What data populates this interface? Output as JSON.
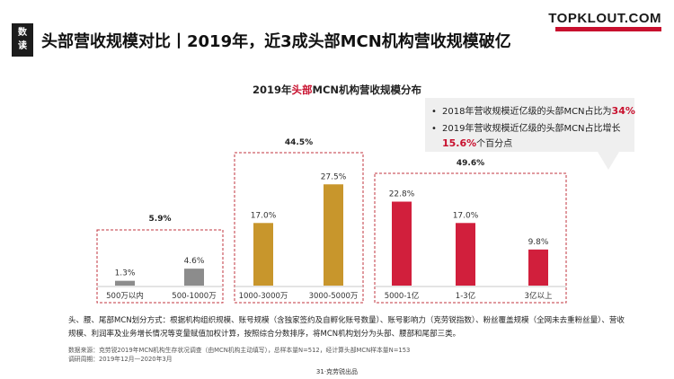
{
  "header": {
    "tag_chars": [
      "数",
      "读"
    ],
    "title": "头部营收规模对比丨2019年，近3成头部MCN机构营收规模破亿",
    "logo_text": "TOPKLOUT.COM"
  },
  "chart_data": {
    "type": "bar",
    "title_prefix": "2019年",
    "title_highlight": "头部",
    "title_suffix": "MCN机构营收规模分布",
    "categories": [
      "500万以内",
      "500-1000万",
      "1000-3000万",
      "3000-5000万",
      "5000-1亿",
      "1-3亿",
      "3亿以上"
    ],
    "values": [
      1.3,
      4.6,
      17.0,
      27.5,
      22.8,
      17.0,
      9.8
    ],
    "value_labels": [
      "1.3%",
      "4.6%",
      "17.0%",
      "27.5%",
      "22.8%",
      "17.0%",
      "9.8%"
    ],
    "groups": [
      {
        "label": "5.9%",
        "members": [
          0,
          1
        ],
        "color": "#8c8c8c"
      },
      {
        "label": "44.5%",
        "members": [
          2,
          3
        ],
        "color": "#c8962c"
      },
      {
        "label": "49.6%",
        "members": [
          4,
          5,
          6
        ],
        "color": "#d11f3c"
      }
    ],
    "ylim": [
      0,
      30
    ],
    "grid": false,
    "legend": "none"
  },
  "callout": {
    "bullet": "•",
    "line1_text": "2018年营收规模近亿级的头部MCN占比为",
    "line1_value": "34%",
    "line2_text": "2019年营收规模近亿级的头部MCN占比增长",
    "line3_value": "15.6%",
    "line3_text": "个百分点"
  },
  "note": "头、腰、尾部MCN划分方式：根据机构组织规模、账号规模（含独家签约及自孵化账号数量）、账号影响力（克劳锐指数）、粉丝覆盖规模（全网未去重粉丝量）、营收规模、利润率及业务增长情况等变量赋值加权计算，按照综合分数排序，将MCN机构划分为头部、腰部和尾部三类。",
  "source_line1": "数据来源：克劳锐2019年MCN机构生存状况调查（由MCN机构主动填写），总样本量N=512，经计算头部MCN样本量N=153",
  "source_line2": "调研周期：2019年12月—2020年3月",
  "footer": "31·克劳锐出品"
}
